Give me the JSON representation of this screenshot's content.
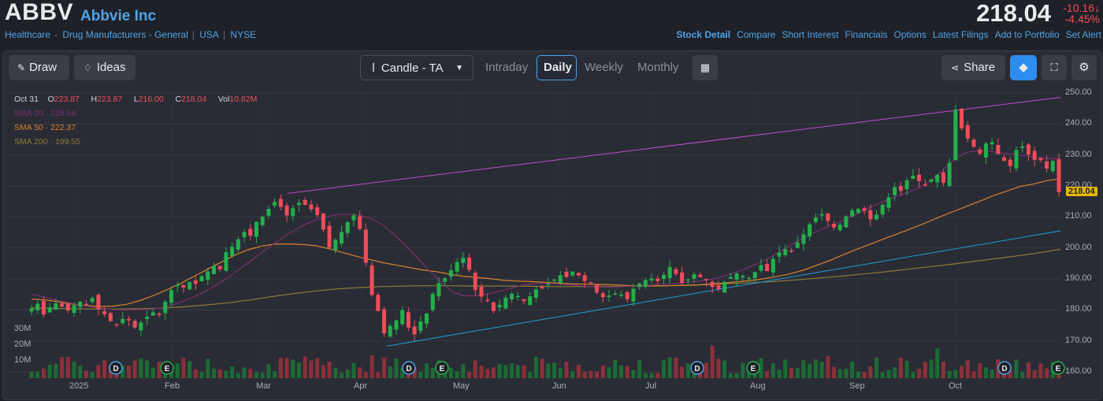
{
  "header": {
    "ticker": "ABBV",
    "company": "Abbvie Inc",
    "crumbs": [
      "Healthcare",
      "Drug Manufacturers - General",
      "USA",
      "NYSE"
    ],
    "price": "218.04",
    "change": "-10.16",
    "change_pct": "-4.45%",
    "links": [
      "Stock Detail",
      "Compare",
      "Short Interest",
      "Financials",
      "Options",
      "Latest Filings",
      "Add to Portfolio",
      "Set Alert"
    ]
  },
  "toolbar": {
    "draw": "Draw",
    "ideas": "Ideas",
    "chart_type": "Candle - TA",
    "timeframes": [
      "Intraday",
      "Daily",
      "Weekly",
      "Monthly"
    ],
    "active_timeframe": "Daily",
    "share": "Share"
  },
  "legend": {
    "date": "Oct 31",
    "o_label": "O",
    "o": "223.87",
    "h_label": "H",
    "h": "223.87",
    "l_label": "L",
    "l": "216.00",
    "c_label": "C",
    "c": "218.04",
    "vol_label": "Vol",
    "vol": "10.82M",
    "sma20": "SMA 20 · 228.64",
    "sma50": "SMA 50 · 222.37",
    "sma200": "SMA 200 · 199.55"
  },
  "colors": {
    "up": "#22b04b",
    "down": "#f04c5a",
    "sma20": "#7b2f6e",
    "sma50": "#d9822b",
    "sma200": "#8a7a3a",
    "trend_upper": "#c04bd6",
    "trend_lower": "#1a9fd8",
    "accent": "#4ea3e6"
  },
  "chart_data": {
    "type": "candlestick",
    "ylim": [
      160,
      250
    ],
    "yticks": [
      "250.00",
      "240.00",
      "230.00",
      "220.00",
      "210.00",
      "200.00",
      "190.00",
      "180.00",
      "170.00",
      "160.00"
    ],
    "last_price_label": "218.04",
    "volume_ticks": [
      "30M",
      "20M",
      "10M"
    ],
    "months": [
      "2025",
      "Feb",
      "Mar",
      "Apr",
      "May",
      "Jun",
      "Jul",
      "Aug",
      "Sep",
      "Oct"
    ],
    "events": [
      {
        "type": "D",
        "label": "D",
        "month_pos": 1.55
      },
      {
        "type": "E",
        "label": "E",
        "month_pos": 2.04
      },
      {
        "type": "D",
        "label": "D",
        "month_pos": 4.44
      },
      {
        "type": "E",
        "label": "E",
        "month_pos": 4.8
      },
      {
        "type": "D",
        "label": "D",
        "month_pos": 7.44
      },
      {
        "type": "E",
        "label": "E",
        "month_pos": 8.0
      },
      {
        "type": "D",
        "label": "D",
        "month_pos": 10.5
      },
      {
        "type": "E",
        "label": "E",
        "month_pos": 11.0
      }
    ],
    "closes": [
      180.5,
      182.0,
      178.5,
      180.8,
      182.1,
      181.0,
      179.8,
      181.5,
      182.6,
      181.9,
      183.8,
      180.2,
      178.6,
      176.4,
      175.3,
      177.1,
      176.6,
      174.3,
      175.9,
      177.8,
      179.2,
      178.4,
      182.6,
      186.4,
      188.1,
      187.2,
      189.0,
      188.4,
      190.9,
      192.4,
      194.2,
      193.1,
      198.6,
      200.4,
      202.8,
      205.1,
      203.9,
      208.4,
      210.1,
      212.6,
      214.8,
      213.2,
      210.5,
      212.8,
      214.6,
      213.9,
      212.4,
      210.6,
      205.9,
      200.1,
      202.6,
      205.1,
      208.3,
      210.5,
      206.1,
      195.2,
      184.8,
      179.6,
      172.4,
      174.8,
      176.6,
      179.9,
      174.3,
      172.1,
      176.3,
      178.8,
      185.2,
      188.6,
      190.2,
      192.8,
      195.4,
      196.8,
      192.9,
      186.4,
      184.3,
      183.1,
      179.6,
      181.6,
      183.9,
      185.2,
      184.5,
      182.8,
      184.4,
      186.6,
      186.9,
      188.4,
      189.8,
      191.2,
      190.6,
      192.4,
      191.1,
      189.3,
      188.6,
      185.6,
      184.1,
      184.6,
      185.3,
      184.9,
      183.4,
      186.8,
      188.5,
      189.6,
      190.1,
      189.3,
      191.3,
      193.8,
      191.6,
      188.7,
      189.8,
      191.5,
      190.6,
      189.7,
      187.4,
      186.6,
      189.1,
      190.6,
      191.7,
      191.0,
      190.3,
      192.2,
      194.4,
      192.5,
      196.5,
      198.5,
      199.6,
      198.9,
      201.8,
      204.4,
      207.6,
      209.8,
      210.9,
      208.7,
      206.6,
      207.5,
      210.2,
      212.1,
      212.6,
      211.9,
      209.2,
      210.7,
      213.9,
      216.3,
      219.6,
      218.4,
      221.8,
      223.3,
      221.6,
      220.3,
      222.1,
      223.6,
      221.0,
      227.5,
      244.6,
      238.6,
      235.3,
      232.6,
      230.4,
      233.7,
      234.1,
      230.3,
      228.1,
      226.4,
      231.6,
      232.8,
      230.1,
      228.4,
      228.3,
      225.6,
      228.04,
      218.04
    ],
    "sma20": [
      185,
      184.2,
      183.3,
      182.4,
      181.7,
      181,
      180.5,
      180.1,
      180,
      180,
      180.2,
      180.6,
      181.5,
      182.8,
      184.4,
      186.3,
      188.5,
      191,
      193.7,
      196.5,
      199.4,
      202,
      204.6,
      206.8,
      208.6,
      209.8,
      210.7,
      210.9,
      210.6,
      209.5,
      207.5,
      204.3,
      200.7,
      196.7,
      192.8,
      189,
      185.8,
      184.5,
      184.6,
      185.1,
      186,
      187,
      188,
      188.5,
      188.6,
      188.4,
      188.1,
      187.7,
      187.4,
      187.3,
      187.4,
      187.6,
      187.8,
      188,
      188.3,
      188.5,
      188.8,
      189.2,
      189.8,
      190.6,
      191.8,
      193.2,
      194.8,
      196.6,
      198.8,
      201.1,
      203.2,
      205,
      206.6,
      208.2,
      209.9,
      211.8,
      213.6,
      215.2,
      216.6,
      218,
      219.6,
      221.9,
      225.4,
      228.8,
      230.9,
      231.4,
      231.1,
      230.6,
      230.2,
      229.7,
      229.2,
      228.9,
      228.64
    ],
    "sma50": [
      183.5,
      183.2,
      182.6,
      181.9,
      181.4,
      181.1,
      181.2,
      181.8,
      183,
      184.6,
      186.5,
      188.5,
      190.8,
      193.1,
      195.4,
      197.6,
      199.4,
      200.6,
      201.2,
      201.3,
      201.1,
      200.7,
      199.7,
      198.5,
      197.3,
      196.2,
      195.2,
      194.4,
      193.6,
      192.8,
      192.3,
      191.4,
      190.8,
      190.4,
      190,
      189.5,
      189.3,
      189.1,
      188.9,
      188.6,
      188.4,
      188.3,
      188.2,
      188.1,
      187.9,
      187.8,
      187.7,
      187.8,
      187.9,
      188,
      188.3,
      188.6,
      189,
      189.4,
      190,
      190.7,
      191.6,
      192.8,
      194.4,
      196,
      197.9,
      199.6,
      201.3,
      203,
      204.6,
      206.3,
      208,
      209.8,
      211.6,
      213.3,
      215,
      216.8,
      218.3,
      219.8,
      220.6,
      221.7,
      222.37
    ],
    "sma200": [
      180.6,
      180.5,
      180.4,
      180.3,
      180.3,
      180.4,
      180.6,
      181,
      181.6,
      182.3,
      183.2,
      184.3,
      185.3,
      186.1,
      186.8,
      187.2,
      187.5,
      187.7,
      187.8,
      187.8,
      187.7,
      187.7,
      187.7,
      187.6,
      187.5,
      187.5,
      187.5,
      187.6,
      187.7,
      187.8,
      188,
      188.2,
      188.5,
      188.8,
      189.2,
      189.7,
      190.3,
      190.9,
      191.6,
      192.3,
      193.1,
      193.9,
      194.7,
      195.6,
      196.5,
      197.4,
      198.4,
      199.55
    ],
    "trend_upper": [
      [
        174,
        217.6
      ],
      [
        1350,
        248.6
      ]
    ],
    "trend_lower": [
      [
        491,
        168.3
      ],
      [
        1350,
        205.5
      ]
    ]
  }
}
